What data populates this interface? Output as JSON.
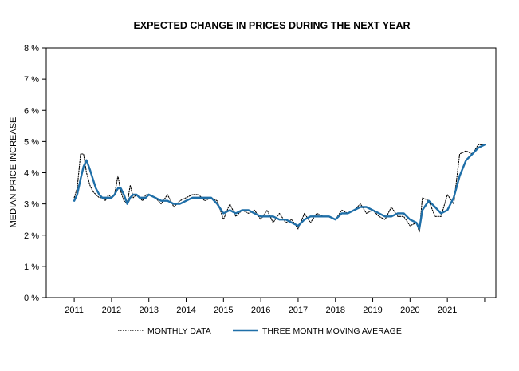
{
  "chart_data": {
    "type": "line",
    "title": "EXPECTED CHANGE IN PRICES DURING THE NEXT YEAR",
    "ylabel": "MEDIAN PRICE INCREASE",
    "xlabel": "",
    "ylim": [
      0,
      8
    ],
    "xlim": [
      2010.25,
      2022.3
    ],
    "yticks": [
      0,
      1,
      2,
      3,
      4,
      5,
      6,
      7,
      8
    ],
    "ytick_labels": [
      "0 %",
      "1 %",
      "2 %",
      "3 %",
      "4 %",
      "5 %",
      "6 %",
      "7 %",
      "8 %"
    ],
    "xticks": [
      2011,
      2012,
      2013,
      2014,
      2015,
      2016,
      2017,
      2018,
      2019,
      2020,
      2021
    ],
    "xtick_labels": [
      "2011",
      "2012",
      "2013",
      "2014",
      "2015",
      "2016",
      "2017",
      "2018",
      "2019",
      "2020",
      "2021"
    ],
    "grid": false,
    "legend_position": "bottom",
    "series": [
      {
        "name": "MONTHLY DATA",
        "style": "dotted",
        "color": "#000000",
        "x": [
          2011.0,
          2011.08,
          2011.17,
          2011.25,
          2011.33,
          2011.42,
          2011.5,
          2011.58,
          2011.67,
          2011.75,
          2011.83,
          2011.92,
          2012.0,
          2012.08,
          2012.17,
          2012.25,
          2012.33,
          2012.42,
          2012.5,
          2012.58,
          2012.67,
          2012.75,
          2012.83,
          2012.92,
          2013.0,
          2013.17,
          2013.33,
          2013.5,
          2013.67,
          2013.83,
          2014.0,
          2014.17,
          2014.33,
          2014.5,
          2014.67,
          2014.83,
          2015.0,
          2015.17,
          2015.33,
          2015.5,
          2015.67,
          2015.83,
          2016.0,
          2016.17,
          2016.33,
          2016.5,
          2016.67,
          2016.83,
          2017.0,
          2017.17,
          2017.33,
          2017.5,
          2017.67,
          2017.83,
          2018.0,
          2018.17,
          2018.33,
          2018.5,
          2018.67,
          2018.83,
          2019.0,
          2019.17,
          2019.33,
          2019.5,
          2019.67,
          2019.83,
          2020.0,
          2020.17,
          2020.25,
          2020.33,
          2020.5,
          2020.67,
          2020.83,
          2021.0,
          2021.17,
          2021.33,
          2021.5,
          2021.67,
          2021.83,
          2022.0
        ],
        "values": [
          3.2,
          3.5,
          4.6,
          4.6,
          4.0,
          3.6,
          3.4,
          3.3,
          3.2,
          3.2,
          3.1,
          3.3,
          3.2,
          3.3,
          3.9,
          3.4,
          3.1,
          3.0,
          3.6,
          3.2,
          3.3,
          3.2,
          3.1,
          3.3,
          3.3,
          3.2,
          3.0,
          3.3,
          2.9,
          3.1,
          3.2,
          3.3,
          3.3,
          3.1,
          3.2,
          3.1,
          2.5,
          3.0,
          2.6,
          2.8,
          2.7,
          2.8,
          2.5,
          2.8,
          2.4,
          2.7,
          2.4,
          2.5,
          2.2,
          2.7,
          2.4,
          2.7,
          2.6,
          2.6,
          2.5,
          2.8,
          2.7,
          2.8,
          3.0,
          2.7,
          2.8,
          2.6,
          2.5,
          2.9,
          2.6,
          2.6,
          2.3,
          2.4,
          2.1,
          3.2,
          3.1,
          2.6,
          2.6,
          3.3,
          3.0,
          4.6,
          4.7,
          4.6,
          4.9,
          4.9
        ]
      },
      {
        "name": "THREE MONTH MOVING AVERAGE",
        "style": "solid",
        "color": "#1f6fa8",
        "x": [
          2011.0,
          2011.08,
          2011.17,
          2011.25,
          2011.33,
          2011.42,
          2011.5,
          2011.58,
          2011.67,
          2011.75,
          2011.83,
          2011.92,
          2012.0,
          2012.08,
          2012.17,
          2012.25,
          2012.33,
          2012.42,
          2012.5,
          2012.58,
          2012.67,
          2012.75,
          2012.83,
          2012.92,
          2013.0,
          2013.17,
          2013.33,
          2013.5,
          2013.67,
          2013.83,
          2014.0,
          2014.17,
          2014.33,
          2014.5,
          2014.67,
          2014.83,
          2015.0,
          2015.17,
          2015.33,
          2015.5,
          2015.67,
          2015.83,
          2016.0,
          2016.17,
          2016.33,
          2016.5,
          2016.67,
          2016.83,
          2017.0,
          2017.17,
          2017.33,
          2017.5,
          2017.67,
          2017.83,
          2018.0,
          2018.17,
          2018.33,
          2018.5,
          2018.67,
          2018.83,
          2019.0,
          2019.17,
          2019.33,
          2019.5,
          2019.67,
          2019.83,
          2020.0,
          2020.17,
          2020.25,
          2020.33,
          2020.5,
          2020.67,
          2020.83,
          2021.0,
          2021.17,
          2021.33,
          2021.5,
          2021.67,
          2021.83,
          2022.0
        ],
        "values": [
          3.1,
          3.3,
          3.8,
          4.2,
          4.4,
          4.1,
          3.8,
          3.5,
          3.3,
          3.2,
          3.2,
          3.2,
          3.2,
          3.3,
          3.5,
          3.5,
          3.3,
          3.0,
          3.2,
          3.3,
          3.3,
          3.2,
          3.2,
          3.2,
          3.3,
          3.2,
          3.1,
          3.1,
          3.0,
          3.0,
          3.1,
          3.2,
          3.2,
          3.2,
          3.2,
          3.0,
          2.7,
          2.8,
          2.7,
          2.8,
          2.8,
          2.7,
          2.6,
          2.6,
          2.6,
          2.5,
          2.5,
          2.4,
          2.3,
          2.5,
          2.6,
          2.6,
          2.6,
          2.6,
          2.5,
          2.7,
          2.7,
          2.8,
          2.9,
          2.9,
          2.8,
          2.7,
          2.6,
          2.6,
          2.7,
          2.7,
          2.5,
          2.4,
          2.2,
          2.8,
          3.1,
          2.9,
          2.7,
          2.8,
          3.2,
          3.9,
          4.4,
          4.6,
          4.8,
          4.9
        ]
      }
    ]
  }
}
